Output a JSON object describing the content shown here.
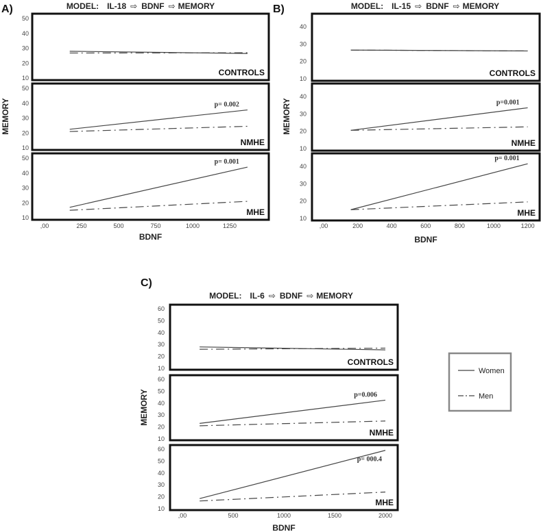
{
  "chart_data": [
    {
      "panel": "A)",
      "type": "line",
      "title": {
        "prefix": "MODEL:",
        "cytokine": "IL-18",
        "mediator": "BDNF",
        "outcome": "MEMORY"
      },
      "xlabel": "BDNF",
      "ylabel": "MEMORY",
      "xticks": [
        ",00",
        "250",
        "500",
        "750",
        "1000",
        "1250"
      ],
      "xtick_values": [
        0,
        250,
        500,
        750,
        1000,
        1250
      ],
      "yticks": [
        10,
        20,
        30,
        40,
        50
      ],
      "ylim": [
        10,
        50
      ],
      "subplots": [
        {
          "label": "CONTROLS",
          "p": null,
          "series": [
            {
              "name": "Women",
              "x": [
                170,
                1370
              ],
              "y": [
                28,
                26.5
              ]
            },
            {
              "name": "Men",
              "x": [
                170,
                1370
              ],
              "y": [
                26.8,
                27
              ]
            }
          ]
        },
        {
          "label": "NMHE",
          "p": "p= 0.002",
          "series": [
            {
              "name": "Women",
              "x": [
                170,
                1370
              ],
              "y": [
                22.5,
                35.5
              ]
            },
            {
              "name": "Men",
              "x": [
                170,
                1370
              ],
              "y": [
                21,
                24.5
              ]
            }
          ]
        },
        {
          "label": "MHE",
          "p": "p= 0.001",
          "series": [
            {
              "name": "Women",
              "x": [
                170,
                1370
              ],
              "y": [
                17,
                44
              ]
            },
            {
              "name": "Men",
              "x": [
                170,
                1370
              ],
              "y": [
                15,
                21
              ]
            }
          ]
        }
      ]
    },
    {
      "panel": "B)",
      "type": "line",
      "title": {
        "prefix": "MODEL:",
        "cytokine": "IL-15",
        "mediator": "BDNF",
        "outcome": "MEMORY"
      },
      "xlabel": "BDNF",
      "ylabel": "MEMORY",
      "xticks": [
        ",00",
        "200",
        "400",
        "600",
        "800",
        "1000",
        "1200"
      ],
      "xtick_values": [
        0,
        200,
        400,
        600,
        800,
        1000,
        1200
      ],
      "yticks": [
        10,
        20,
        30,
        40
      ],
      "ylim": [
        10,
        47
      ],
      "subplots": [
        {
          "label": "CONTROLS",
          "p": null,
          "series": [
            {
              "name": "Women",
              "x": [
                160,
                1200
              ],
              "y": [
                26.5,
                26
              ]
            },
            {
              "name": "Men",
              "x": [
                160,
                1200
              ],
              "y": [
                26.5,
                26
              ]
            }
          ]
        },
        {
          "label": "NMHE",
          "p": "p=0.001",
          "series": [
            {
              "name": "Women",
              "x": [
                160,
                1200
              ],
              "y": [
                20.5,
                33.5
              ]
            },
            {
              "name": "Men",
              "x": [
                160,
                1200
              ],
              "y": [
                20.5,
                22.5
              ]
            }
          ]
        },
        {
          "label": "MHE",
          "p": "p= 0.001",
          "series": [
            {
              "name": "Women",
              "x": [
                160,
                1200
              ],
              "y": [
                15,
                41.5
              ]
            },
            {
              "name": "Men",
              "x": [
                160,
                1200
              ],
              "y": [
                15,
                19.5
              ]
            }
          ]
        }
      ]
    },
    {
      "panel": "C)",
      "type": "line",
      "title": {
        "prefix": "MODEL:",
        "cytokine": "IL-6",
        "mediator": "BDNF",
        "outcome": "MEMORY"
      },
      "xlabel": "BDNF",
      "ylabel": "MEMORY",
      "xticks": [
        ",00",
        "500",
        "1000",
        "1500",
        "2000"
      ],
      "xtick_values": [
        0,
        500,
        1000,
        1500,
        2000
      ],
      "yticks": [
        10,
        20,
        30,
        40,
        50,
        60
      ],
      "ylim": [
        10,
        60
      ],
      "subplots": [
        {
          "label": "CONTROLS",
          "p": null,
          "series": [
            {
              "name": "Women",
              "x": [
                170,
                2000
              ],
              "y": [
                28,
                25.5
              ]
            },
            {
              "name": "Men",
              "x": [
                170,
                2000
              ],
              "y": [
                26,
                27
              ]
            }
          ]
        },
        {
          "label": "NMHE",
          "p": "p=0.006",
          "series": [
            {
              "name": "Women",
              "x": [
                170,
                2000
              ],
              "y": [
                23,
                42.5
              ]
            },
            {
              "name": "Men",
              "x": [
                170,
                2000
              ],
              "y": [
                21,
                25
              ]
            }
          ]
        },
        {
          "label": "MHE",
          "p": "p= 000.4",
          "series": [
            {
              "name": "Women",
              "x": [
                170,
                2000
              ],
              "y": [
                18.5,
                59
              ]
            },
            {
              "name": "Men",
              "x": [
                170,
                2000
              ],
              "y": [
                16.5,
                24
              ]
            }
          ]
        }
      ]
    }
  ],
  "legend": {
    "position": "right",
    "items": [
      {
        "name": "Women",
        "style": "solid"
      },
      {
        "name": "Men",
        "style": "dash-dot"
      }
    ]
  },
  "colors": {
    "line": "#444444",
    "frame": "#111111",
    "legend_frame": "#888888"
  }
}
